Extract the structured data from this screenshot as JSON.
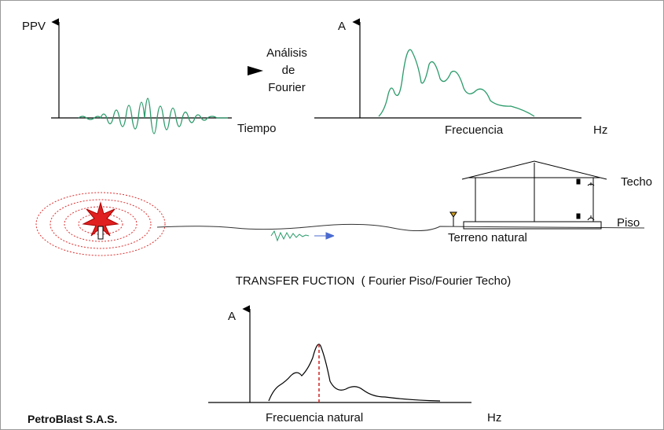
{
  "time_signal": {
    "y_label": "PPV",
    "x_label": "Tiempo"
  },
  "fourier_label": [
    "Análisis",
    "de",
    "Fourier"
  ],
  "spectrum": {
    "y_label": "A",
    "x_label": "Frecuencia",
    "unit": "Hz"
  },
  "building": {
    "roof_label": "Techo",
    "floor_label": "Piso",
    "ground_label": "Terreno natural"
  },
  "transfer_title": "TRANSFER FUCTION  ( Fourier Piso/Fourier Techo)",
  "transfer": {
    "y_label": "A",
    "x_label": "Frecuencia natural",
    "unit": "Hz"
  },
  "footer": "PetroBlast S.A.S."
}
